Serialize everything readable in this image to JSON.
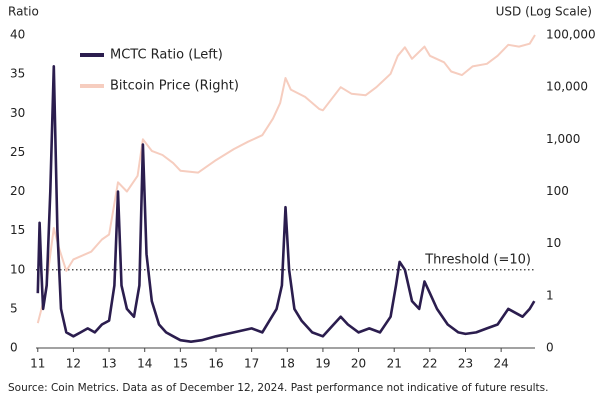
{
  "chart_data": {
    "type": "line",
    "y_label": "Ratio",
    "y2_label": "USD (Log Scale)",
    "source": "Source: Coin Metrics. Data as of December 12, 2024. Past performance not indicative of future results.",
    "xlim": [
      10.95,
      24.95
    ],
    "xticks": [
      11,
      12,
      13,
      14,
      15,
      16,
      17,
      18,
      19,
      20,
      21,
      22,
      23,
      24
    ],
    "ylim": [
      0,
      40
    ],
    "yticks": [
      0,
      5,
      10,
      15,
      20,
      25,
      30,
      35,
      40
    ],
    "y2lim": [
      0.1,
      100000
    ],
    "y2scale": "log",
    "y2ticks": [
      {
        "value": 0.1,
        "label": "0"
      },
      1,
      10,
      100,
      {
        "value": 1000,
        "label": "1,000"
      },
      {
        "value": 10000,
        "label": "10,000"
      },
      {
        "value": 100000,
        "label": "100,000"
      }
    ],
    "legend": "upper left",
    "grid": false,
    "threshold": {
      "value": 10,
      "label": "Threshold (=10)"
    },
    "series": [
      {
        "name": "Bitcoin Price (Right)",
        "color": "#f6cdbf",
        "axis": "y2",
        "x": [
          11.0,
          11.2,
          11.45,
          11.6,
          11.8,
          12.0,
          12.5,
          12.8,
          13.0,
          13.25,
          13.5,
          13.8,
          13.95,
          14.2,
          14.5,
          14.8,
          15.0,
          15.5,
          16.0,
          16.5,
          16.9,
          17.3,
          17.6,
          17.8,
          17.95,
          18.1,
          18.5,
          18.9,
          19.0,
          19.5,
          19.8,
          20.2,
          20.5,
          20.9,
          21.1,
          21.3,
          21.5,
          21.85,
          22.0,
          22.4,
          22.6,
          22.9,
          23.2,
          23.6,
          23.9,
          24.2,
          24.5,
          24.8,
          24.95
        ],
        "values": [
          0.3,
          1,
          20,
          8,
          3,
          5,
          7,
          12,
          15,
          150,
          100,
          200,
          1000,
          600,
          500,
          350,
          250,
          230,
          400,
          650,
          900,
          1200,
          2500,
          5000,
          15000,
          9000,
          6500,
          3800,
          3600,
          10000,
          7500,
          7000,
          10000,
          18000,
          40000,
          58000,
          35000,
          60000,
          40000,
          30000,
          20000,
          17000,
          25000,
          28000,
          40000,
          65000,
          60000,
          68000,
          100000
        ]
      },
      {
        "name": "MCTC Ratio (Left)",
        "color": "#2b1d4e",
        "x": [
          11.0,
          11.05,
          11.1,
          11.15,
          11.25,
          11.35,
          11.45,
          11.55,
          11.65,
          11.8,
          12.0,
          12.2,
          12.4,
          12.6,
          12.8,
          13.0,
          13.15,
          13.25,
          13.35,
          13.5,
          13.7,
          13.85,
          13.95,
          14.05,
          14.2,
          14.4,
          14.6,
          14.8,
          15.0,
          15.3,
          15.6,
          16.0,
          16.5,
          17.0,
          17.3,
          17.5,
          17.7,
          17.85,
          17.95,
          18.05,
          18.2,
          18.4,
          18.7,
          19.0,
          19.3,
          19.5,
          19.7,
          20.0,
          20.3,
          20.6,
          20.9,
          21.05,
          21.15,
          21.3,
          21.5,
          21.7,
          21.85,
          22.0,
          22.2,
          22.5,
          22.8,
          23.0,
          23.3,
          23.6,
          23.9,
          24.2,
          24.4,
          24.6,
          24.8,
          24.93
        ],
        "values": [
          7,
          16,
          10,
          5,
          8,
          20,
          36,
          15,
          5,
          2,
          1.5,
          2,
          2.5,
          2,
          3,
          3.5,
          8,
          20,
          8,
          5,
          4,
          8,
          26,
          12,
          6,
          3,
          2,
          1.5,
          1,
          0.8,
          1,
          1.5,
          2,
          2.5,
          2,
          3.5,
          5,
          8,
          18,
          10,
          5,
          3.5,
          2,
          1.5,
          3,
          4,
          3,
          2,
          2.5,
          2,
          4,
          8,
          11,
          10,
          6,
          5,
          8.5,
          7,
          5,
          3,
          2,
          1.8,
          2,
          2.5,
          3,
          5,
          4.5,
          4,
          5,
          6
        ]
      }
    ]
  }
}
